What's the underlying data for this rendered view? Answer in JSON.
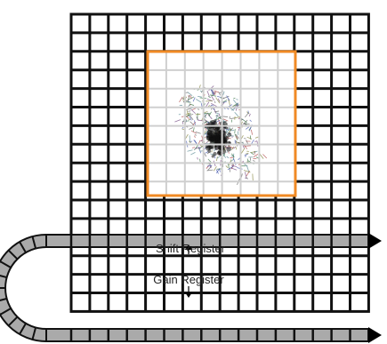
{
  "labels": {
    "shift_register": "Shift Register",
    "gain_register": "Gain Register"
  },
  "sensor": {
    "columns": 16,
    "rows": 16
  },
  "colors": {
    "grid_line": "#111111",
    "cell_fill": "#ffffff",
    "roi_outline": "#f08a24",
    "roi_grid_line": "#cfcfcf",
    "register_fill": "#aaaaaa",
    "register_line": "#111111",
    "arrow": "#000000",
    "label_text": "#222222"
  },
  "icons": {
    "sample": "cell-sample-scatter-image",
    "output": "triangle-arrow-head"
  }
}
